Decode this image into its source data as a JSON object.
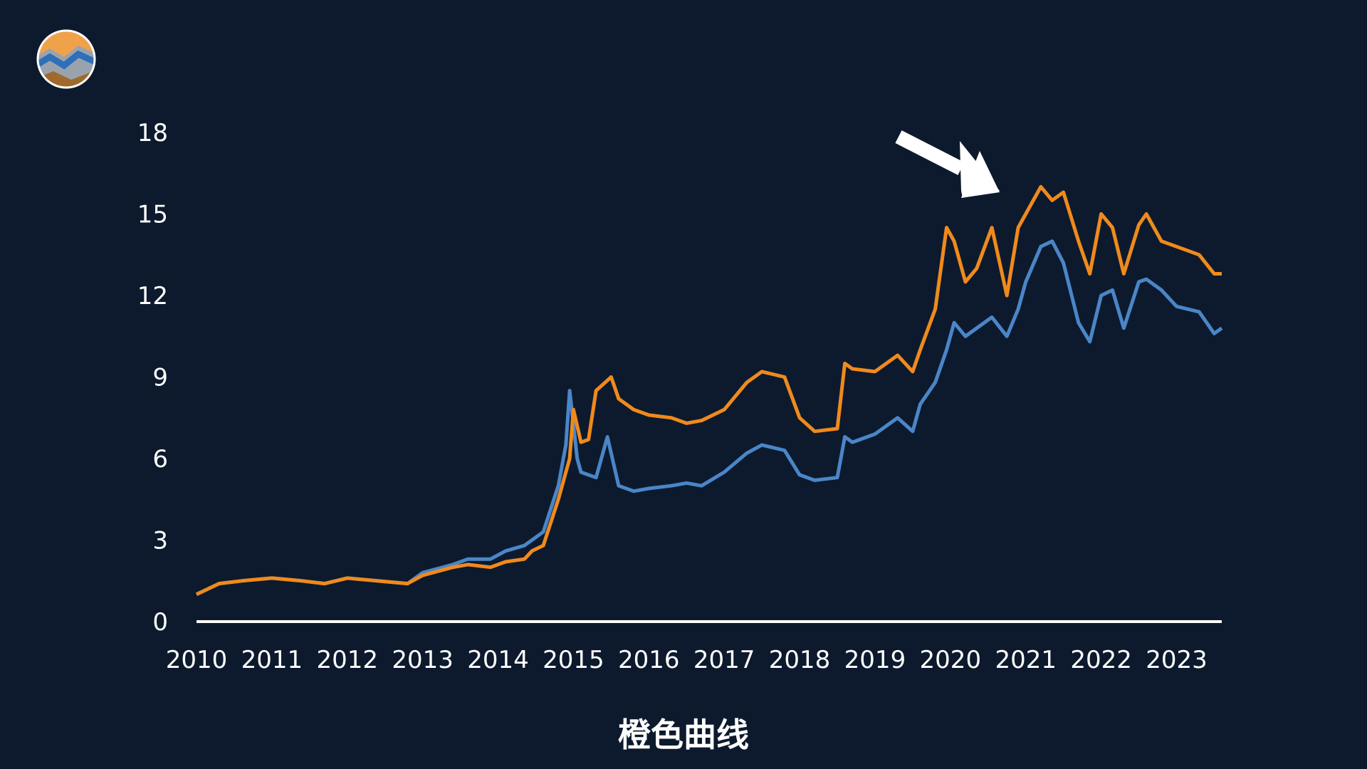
{
  "caption": "橙色曲线",
  "logo": {
    "icon": "mountain-logo-icon"
  },
  "annotation": {
    "icon": "arrow-icon",
    "color": "#ffffff"
  },
  "colors": {
    "background": "#0d1a2d",
    "orange": "#f08a1c",
    "blue": "#4a86c8",
    "axis": "#ffffff"
  },
  "chart_data": {
    "type": "line",
    "title": "",
    "xlabel": "",
    "ylabel": "",
    "xlim": [
      2010,
      2023.6
    ],
    "ylim": [
      0,
      18
    ],
    "y_ticks": [
      0,
      3,
      6,
      9,
      12,
      15,
      18
    ],
    "x_tick_labels": [
      "2010",
      "2011",
      "2012",
      "2013",
      "2014",
      "2015",
      "2016",
      "2017",
      "2018",
      "2019",
      "2020",
      "2021",
      "2022",
      "2023"
    ],
    "grid": false,
    "legend": "none",
    "series": [
      {
        "color": "#f08a1c",
        "x": [
          2010.0,
          2010.3,
          2010.6,
          2011.0,
          2011.4,
          2011.7,
          2012.0,
          2012.4,
          2012.8,
          2013.0,
          2013.4,
          2013.6,
          2013.9,
          2014.1,
          2014.35,
          2014.45,
          2014.6,
          2014.8,
          2014.95,
          2015.0,
          2015.1,
          2015.2,
          2015.3,
          2015.5,
          2015.6,
          2015.8,
          2016.0,
          2016.3,
          2016.5,
          2016.7,
          2017.0,
          2017.3,
          2017.5,
          2017.8,
          2018.0,
          2018.2,
          2018.5,
          2018.6,
          2018.7,
          2019.0,
          2019.3,
          2019.5,
          2019.6,
          2019.8,
          2019.95,
          2020.05,
          2020.2,
          2020.35,
          2020.55,
          2020.75,
          2020.9,
          2021.0,
          2021.2,
          2021.35,
          2021.5,
          2021.7,
          2021.85,
          2022.0,
          2022.15,
          2022.3,
          2022.5,
          2022.6,
          2022.8,
          2023.0,
          2023.3,
          2023.5,
          2023.6
        ],
        "y": [
          1.0,
          1.4,
          1.5,
          1.6,
          1.5,
          1.4,
          1.6,
          1.5,
          1.4,
          1.7,
          2.0,
          2.1,
          2.0,
          2.2,
          2.3,
          2.6,
          2.8,
          4.5,
          6.0,
          7.8,
          6.6,
          6.7,
          8.5,
          9.0,
          8.2,
          7.8,
          7.6,
          7.5,
          7.3,
          7.4,
          7.8,
          8.8,
          9.2,
          9.0,
          7.5,
          7.0,
          7.1,
          9.5,
          9.3,
          9.2,
          9.8,
          9.2,
          10.0,
          11.5,
          14.5,
          14.0,
          12.5,
          13.0,
          14.5,
          12.0,
          14.5,
          15.0,
          16.0,
          15.5,
          15.8,
          14.0,
          12.8,
          15.0,
          14.5,
          12.8,
          14.6,
          15.0,
          14.0,
          13.8,
          13.5,
          12.8,
          12.8
        ]
      },
      {
        "color": "#4a86c8",
        "x": [
          2010.0,
          2010.3,
          2010.6,
          2011.0,
          2011.4,
          2011.7,
          2012.0,
          2012.4,
          2012.8,
          2013.0,
          2013.4,
          2013.6,
          2013.9,
          2014.1,
          2014.35,
          2014.45,
          2014.6,
          2014.8,
          2014.9,
          2014.95,
          2015.05,
          2015.1,
          2015.3,
          2015.45,
          2015.6,
          2015.8,
          2016.0,
          2016.3,
          2016.5,
          2016.7,
          2017.0,
          2017.3,
          2017.5,
          2017.8,
          2018.0,
          2018.2,
          2018.5,
          2018.6,
          2018.7,
          2019.0,
          2019.3,
          2019.5,
          2019.6,
          2019.8,
          2019.95,
          2020.05,
          2020.2,
          2020.35,
          2020.55,
          2020.75,
          2020.9,
          2021.0,
          2021.2,
          2021.35,
          2021.5,
          2021.7,
          2021.85,
          2022.0,
          2022.15,
          2022.3,
          2022.5,
          2022.6,
          2022.8,
          2023.0,
          2023.3,
          2023.5,
          2023.6
        ],
        "y": [
          1.0,
          1.4,
          1.5,
          1.6,
          1.5,
          1.4,
          1.6,
          1.5,
          1.4,
          1.8,
          2.1,
          2.3,
          2.3,
          2.6,
          2.8,
          3.0,
          3.3,
          5.0,
          6.5,
          8.5,
          6.0,
          5.5,
          5.3,
          6.8,
          5.0,
          4.8,
          4.9,
          5.0,
          5.1,
          5.0,
          5.5,
          6.2,
          6.5,
          6.3,
          5.4,
          5.2,
          5.3,
          6.8,
          6.6,
          6.9,
          7.5,
          7.0,
          8.0,
          8.8,
          10.0,
          11.0,
          10.5,
          10.8,
          11.2,
          10.5,
          11.5,
          12.5,
          13.8,
          14.0,
          13.2,
          11.0,
          10.3,
          12.0,
          12.2,
          10.8,
          12.5,
          12.6,
          12.2,
          11.6,
          11.4,
          10.6,
          10.8
        ]
      }
    ]
  }
}
